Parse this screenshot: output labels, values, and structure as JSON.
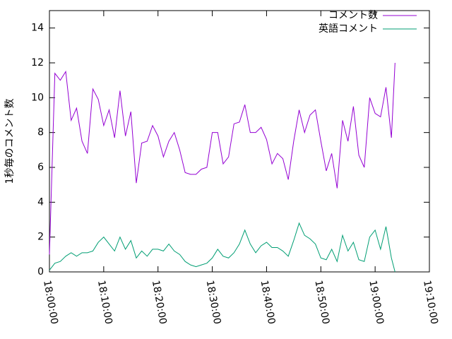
{
  "chart_data": {
    "type": "line",
    "y_label": "1秒毎のコメント数",
    "x": [
      64800,
      64860,
      64920,
      64980,
      65040,
      65100,
      65160,
      65220,
      65280,
      65340,
      65400,
      65460,
      65520,
      65580,
      65640,
      65700,
      65760,
      65820,
      65880,
      65940,
      66000,
      66060,
      66120,
      66180,
      66240,
      66300,
      66360,
      66420,
      66480,
      66540,
      66600,
      66660,
      66720,
      66780,
      66840,
      66900,
      66960,
      67020,
      67080,
      67140,
      67200,
      67260,
      67320,
      67380,
      67440,
      67500,
      67560,
      67620,
      67680,
      67740,
      67800,
      67860,
      67920,
      67980,
      68040,
      68100,
      68160,
      68220,
      68280,
      68340,
      68400,
      68460,
      68520,
      68580,
      68620
    ],
    "series": [
      {
        "name": "コメント数",
        "color": "#9400d3",
        "values": [
          1.0,
          11.4,
          11.0,
          11.5,
          8.7,
          9.4,
          7.5,
          6.8,
          10.5,
          9.9,
          8.4,
          9.3,
          7.7,
          10.4,
          7.8,
          9.2,
          5.1,
          7.4,
          7.5,
          8.4,
          7.8,
          6.6,
          7.5,
          8.0,
          7.0,
          5.7,
          5.6,
          5.6,
          5.9,
          6.0,
          8.0,
          8.0,
          6.2,
          6.6,
          8.5,
          8.6,
          9.6,
          8.0,
          8.0,
          8.3,
          7.6,
          6.2,
          6.8,
          6.5,
          5.3,
          7.5,
          9.3,
          8.0,
          9.0,
          9.3,
          7.5,
          5.8,
          6.8,
          4.8,
          8.7,
          7.5,
          9.5,
          6.7,
          6.0,
          10.0,
          9.1,
          8.9,
          10.6,
          7.7,
          12.0
        ]
      },
      {
        "name": "英語コメント",
        "color": "#009e73",
        "values": [
          0.1,
          0.5,
          0.6,
          0.9,
          1.1,
          0.9,
          1.1,
          1.1,
          1.2,
          1.7,
          2.0,
          1.6,
          1.2,
          2.0,
          1.3,
          1.8,
          0.8,
          1.2,
          0.9,
          1.3,
          1.3,
          1.2,
          1.6,
          1.2,
          1.0,
          0.6,
          0.4,
          0.3,
          0.4,
          0.5,
          0.8,
          1.3,
          0.9,
          0.8,
          1.1,
          1.6,
          2.4,
          1.6,
          1.1,
          1.5,
          1.7,
          1.4,
          1.4,
          1.2,
          0.9,
          1.8,
          2.8,
          2.1,
          1.9,
          1.6,
          0.8,
          0.7,
          1.3,
          0.6,
          2.1,
          1.2,
          1.7,
          0.7,
          0.6,
          2.0,
          2.4,
          1.3,
          2.6,
          0.8,
          0.0
        ]
      }
    ],
    "xlim": [
      64800,
      69000
    ],
    "xticks": [
      {
        "value": 64800,
        "label": "18:00:00"
      },
      {
        "value": 65400,
        "label": "18:10:00"
      },
      {
        "value": 66000,
        "label": "18:20:00"
      },
      {
        "value": 66600,
        "label": "18:30:00"
      },
      {
        "value": 67200,
        "label": "18:40:00"
      },
      {
        "value": 67800,
        "label": "18:50:00"
      },
      {
        "value": 68400,
        "label": "19:00:00"
      },
      {
        "value": 69000,
        "label": "19:10:00"
      }
    ],
    "ylim": [
      0,
      15
    ],
    "yticks": [
      0,
      2,
      4,
      6,
      8,
      10,
      12,
      14
    ],
    "legend": "top-right"
  }
}
